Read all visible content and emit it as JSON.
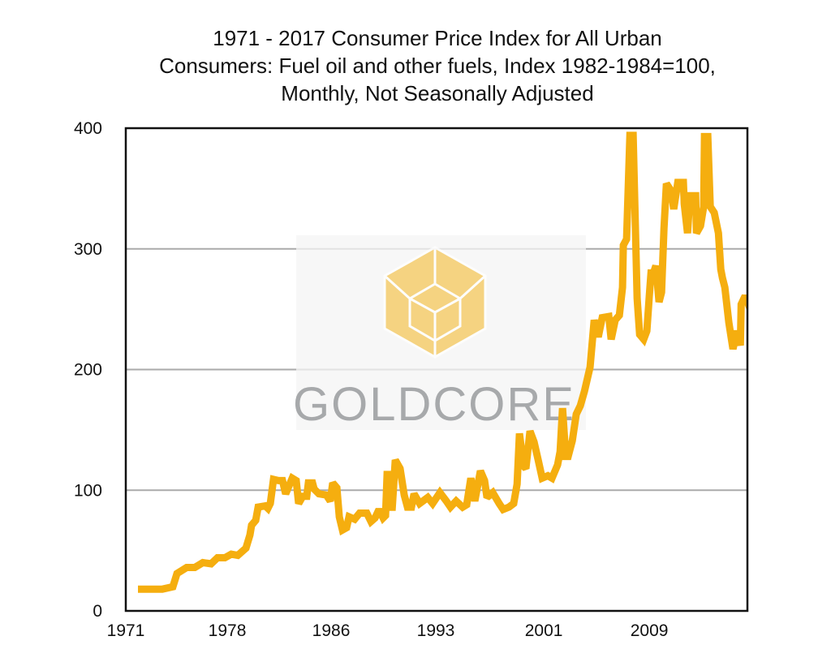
{
  "chart_data": {
    "type": "line",
    "title_lines": [
      "1971 - 2017 Consumer Price Index for All Urban",
      "Consumers: Fuel oil and other fuels, Index 1982-1984=100,",
      "Monthly, Not Seasonally Adjusted"
    ],
    "xlabel": "",
    "ylabel": "",
    "xlim": [
      1971.0,
      2017.5
    ],
    "ylim": [
      0,
      400
    ],
    "grid": "horizontal",
    "y_ticks": [
      {
        "value": 0,
        "label": "0"
      },
      {
        "value": 100,
        "label": "100"
      },
      {
        "value": 200,
        "label": "200"
      },
      {
        "value": 300,
        "label": "300"
      },
      {
        "value": 400,
        "label": "400"
      }
    ],
    "x_ticks": [
      {
        "value": 1971.0,
        "label": "1971"
      },
      {
        "value": 1978.59,
        "label": "1978"
      },
      {
        "value": 1986.36,
        "label": "1986"
      },
      {
        "value": 1994.19,
        "label": "1993"
      },
      {
        "value": 2002.27,
        "label": "2001"
      },
      {
        "value": 2010.16,
        "label": "2009"
      }
    ],
    "series": [
      {
        "name": "CPI Fuel oil and other fuels",
        "color": "#F5AE0F",
        "x": [
          1971.91,
          1973.73,
          1974.52,
          1974.83,
          1975.55,
          1976.16,
          1976.77,
          1977.38,
          1977.86,
          1978.41,
          1978.89,
          1979.38,
          1979.99,
          1980.29,
          1980.41,
          1980.72,
          1980.9,
          1981.44,
          1981.63,
          1981.81,
          1982.05,
          1982.42,
          1982.72,
          1982.96,
          1983.45,
          1983.75,
          1983.93,
          1984.24,
          1984.54,
          1984.66,
          1984.97,
          1985.09,
          1985.45,
          1986.0,
          1986.3,
          1986.48,
          1986.79,
          1986.97,
          1987.21,
          1987.52,
          1987.7,
          1988.12,
          1988.49,
          1989.03,
          1989.34,
          1989.64,
          1989.94,
          1990.25,
          1990.43,
          1990.55,
          1990.73,
          1990.92,
          1991.16,
          1991.52,
          1991.83,
          1992.07,
          1992.37,
          1992.56,
          1992.98,
          1993.59,
          1993.95,
          1994.5,
          1994.98,
          1995.29,
          1995.71,
          1996.2,
          1996.5,
          1996.81,
          1997.11,
          1997.53,
          1997.84,
          1998.02,
          1998.45,
          1998.93,
          1999.23,
          1999.66,
          2000.02,
          2000.27,
          2000.45,
          2000.75,
          2000.93,
          2001.24,
          2001.54,
          2001.85,
          2002.15,
          2002.57,
          2002.88,
          2003.3,
          2003.49,
          2003.67,
          2003.91,
          2004.09,
          2004.4,
          2004.7,
          2005.0,
          2005.31,
          2005.73,
          2006.04,
          2006.34,
          2006.64,
          2007.13,
          2007.31,
          2007.61,
          2007.92,
          2008.16,
          2008.22,
          2008.46,
          2008.71,
          2008.95,
          2009.25,
          2009.44,
          2009.74,
          2009.98,
          2010.16,
          2010.29,
          2010.47,
          2010.65,
          2010.89,
          2011.08,
          2011.26,
          2011.44,
          2011.8,
          2011.99,
          2012.29,
          2012.71,
          2012.78,
          2013.02,
          2013.2,
          2013.63,
          2013.69,
          2013.99,
          2014.23,
          2014.29,
          2014.54,
          2014.72,
          2015.02,
          2015.33,
          2015.51,
          2015.63,
          2015.81,
          2016.11,
          2016.42,
          2016.72,
          2016.97,
          2017.03,
          2017.33,
          2017.75
        ],
        "y": [
          18,
          18,
          20,
          31,
          36,
          36,
          40,
          39,
          44,
          44,
          47,
          46,
          52,
          63,
          71,
          75,
          86,
          87,
          85,
          89,
          109,
          108,
          108,
          97,
          110,
          108,
          89,
          95,
          95,
          106,
          106,
          101,
          97,
          96,
          91,
          106,
          102,
          78,
          67,
          69,
          78,
          76,
          81,
          81,
          74,
          77,
          84,
          77,
          79,
          113,
          113,
          83,
          125,
          118,
          96,
          86,
          86,
          97,
          89,
          94,
          89,
          98,
          91,
          86,
          91,
          86,
          88,
          110,
          91,
          116,
          108,
          94,
          98,
          89,
          84,
          86,
          89,
          105,
          147,
          120,
          118,
          149,
          140,
          125,
          110,
          112,
          110,
          121,
          132,
          168,
          128,
          128,
          141,
          163,
          170,
          182,
          202,
          241,
          227,
          243,
          244,
          225,
          241,
          245,
          268,
          303,
          308,
          394,
          394,
          259,
          229,
          225,
          232,
          261,
          280,
          280,
          286,
          256,
          264,
          317,
          354,
          348,
          333,
          355,
          355,
          337,
          313,
          344,
          344,
          313,
          319,
          335,
          393,
          393,
          335,
          330,
          313,
          283,
          276,
          268,
          239,
          217,
          232,
          220,
          254,
          261,
          249
        ]
      }
    ],
    "watermark": {
      "logo_text": "GoldCore",
      "logo_color": "#F5C75A",
      "text_color": "#9A9C9E"
    }
  }
}
